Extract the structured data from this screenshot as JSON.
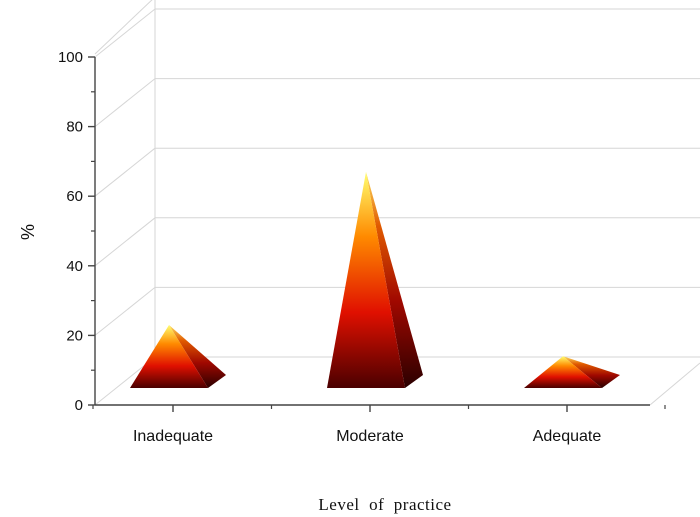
{
  "chart_data": {
    "type": "bar",
    "style": "3d-pyramid",
    "categories": [
      "Inadequate",
      "Moderate",
      "Adequate"
    ],
    "values": [
      23,
      67,
      14
    ],
    "ylabel": "%",
    "xlabel": "Level  of  practice",
    "ylim": [
      0,
      100
    ],
    "yticks": [
      0,
      20,
      40,
      60,
      80,
      100
    ],
    "grid": true,
    "legend": "none",
    "colors": {
      "top": "#ffff66",
      "mid": "#ff2200",
      "base": "#4a0000",
      "grid": "#d6d6d6",
      "axis": "#444444"
    }
  }
}
